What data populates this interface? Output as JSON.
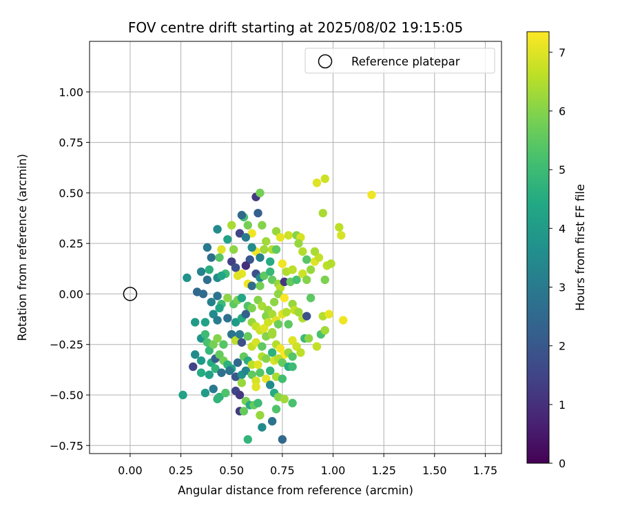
{
  "chart_data": {
    "type": "scatter",
    "title": "FOV centre drift starting at 2025/08/02 19:15:05",
    "xlabel": "Angular distance from reference (arcmin)",
    "ylabel": "Rotation from reference (arcmin)",
    "xlim": [
      -0.2,
      1.83
    ],
    "ylim": [
      -0.79,
      1.25
    ],
    "xticks": [
      0.0,
      0.25,
      0.5,
      0.75,
      1.0,
      1.25,
      1.5,
      1.75
    ],
    "xtick_labels": [
      "0.00",
      "0.25",
      "0.50",
      "0.75",
      "1.00",
      "1.25",
      "1.50",
      "1.75"
    ],
    "yticks": [
      -0.75,
      -0.5,
      -0.25,
      0.0,
      0.25,
      0.5,
      0.75,
      1.0
    ],
    "ytick_labels": [
      "−0.75",
      "−0.50",
      "−0.25",
      "0.00",
      "0.25",
      "0.50",
      "0.75",
      "1.00"
    ],
    "grid": true,
    "legend": {
      "position": "top-right",
      "entries": [
        "Reference platepar"
      ]
    },
    "reference": {
      "x": 0.0,
      "y": 0.0,
      "label": "Reference platepar"
    },
    "colorbar": {
      "label": "Hours from first FF file",
      "colormap": "viridis",
      "range": [
        0,
        7.35
      ],
      "ticks": [
        0,
        1,
        2,
        3,
        4,
        5,
        6,
        7
      ],
      "tick_labels": [
        "0",
        "1",
        "2",
        "3",
        "4",
        "5",
        "6",
        "7"
      ]
    },
    "points": [
      [
        0.62,
        0.48,
        1.2
      ],
      [
        0.64,
        0.5,
        5.8
      ],
      [
        0.92,
        0.55,
        7.0
      ],
      [
        0.96,
        0.57,
        6.8
      ],
      [
        1.19,
        0.49,
        7.2
      ],
      [
        0.95,
        0.4,
        6.4
      ],
      [
        1.03,
        0.33,
        6.6
      ],
      [
        1.04,
        0.29,
        6.9
      ],
      [
        0.56,
        0.38,
        5.2
      ],
      [
        0.58,
        0.34,
        5.8
      ],
      [
        0.63,
        0.4,
        2.2
      ],
      [
        0.55,
        0.39,
        2.5
      ],
      [
        0.65,
        0.34,
        6.0
      ],
      [
        0.67,
        0.26,
        6.3
      ],
      [
        0.7,
        0.22,
        6.5
      ],
      [
        0.72,
        0.31,
        6.2
      ],
      [
        0.74,
        0.28,
        7.1
      ],
      [
        0.78,
        0.29,
        6.8
      ],
      [
        0.82,
        0.29,
        6.0
      ],
      [
        0.84,
        0.28,
        6.9
      ],
      [
        0.85,
        0.21,
        6.5
      ],
      [
        0.83,
        0.25,
        6.2
      ],
      [
        0.5,
        0.34,
        6.4
      ],
      [
        0.54,
        0.3,
        1.5
      ],
      [
        0.51,
        0.22,
        6.1
      ],
      [
        0.45,
        0.22,
        7.0
      ],
      [
        0.43,
        0.32,
        3.5
      ],
      [
        0.48,
        0.27,
        4.2
      ],
      [
        0.6,
        0.3,
        7.2
      ],
      [
        0.62,
        0.21,
        7.2
      ],
      [
        0.6,
        0.23,
        3.5
      ],
      [
        0.57,
        0.28,
        3.0
      ],
      [
        0.59,
        0.17,
        2.0
      ],
      [
        0.64,
        0.18,
        3.2
      ],
      [
        0.66,
        0.22,
        6.3
      ],
      [
        0.69,
        0.16,
        4.5
      ],
      [
        0.72,
        0.22,
        5.5
      ],
      [
        0.75,
        0.15,
        7.2
      ],
      [
        0.77,
        0.11,
        6.5
      ],
      [
        0.8,
        0.12,
        6.6
      ],
      [
        0.85,
        0.1,
        6.8
      ],
      [
        0.87,
        0.17,
        5.4
      ],
      [
        0.89,
        0.12,
        6.2
      ],
      [
        0.91,
        0.16,
        7.0
      ],
      [
        0.93,
        0.18,
        6.7
      ],
      [
        0.97,
        0.14,
        6.6
      ],
      [
        0.99,
        0.15,
        6.5
      ],
      [
        0.96,
        0.07,
        5.9
      ],
      [
        0.91,
        0.21,
        6.4
      ],
      [
        0.87,
        0.07,
        6.0
      ],
      [
        0.38,
        0.23,
        3.0
      ],
      [
        0.4,
        0.18,
        2.7
      ],
      [
        0.39,
        0.12,
        4.6
      ],
      [
        0.35,
        0.11,
        3.3
      ],
      [
        0.38,
        0.07,
        2.7
      ],
      [
        0.43,
        0.08,
        3.5
      ],
      [
        0.44,
        0.18,
        5.4
      ],
      [
        0.47,
        0.1,
        5.0
      ],
      [
        0.45,
        0.09,
        4.3
      ],
      [
        0.5,
        0.16,
        1.4
      ],
      [
        0.52,
        0.13,
        1.8
      ],
      [
        0.55,
        0.1,
        7.1
      ],
      [
        0.57,
        0.14,
        1.0
      ],
      [
        0.53,
        0.09,
        7.0
      ],
      [
        0.58,
        0.05,
        7.2
      ],
      [
        0.62,
        0.1,
        1.8
      ],
      [
        0.6,
        0.04,
        2.6
      ],
      [
        0.64,
        0.08,
        3.4
      ],
      [
        0.64,
        0.04,
        5.8
      ],
      [
        0.66,
        0.09,
        5.5
      ],
      [
        0.69,
        0.11,
        4.9
      ],
      [
        0.7,
        0.07,
        5.6
      ],
      [
        0.73,
        0.05,
        6.2
      ],
      [
        0.74,
        0.03,
        6.6
      ],
      [
        0.76,
        0.06,
        1.2
      ],
      [
        0.79,
        0.06,
        5.6
      ],
      [
        0.82,
        0.07,
        5.2
      ],
      [
        0.73,
        0.0,
        6.1
      ],
      [
        0.76,
        -0.02,
        7.3
      ],
      [
        0.71,
        -0.04,
        6.1
      ],
      [
        0.28,
        0.08,
        3.7
      ],
      [
        0.33,
        0.01,
        2.5
      ],
      [
        0.36,
        0.0,
        2.6
      ],
      [
        0.4,
        -0.04,
        3.2
      ],
      [
        0.43,
        -0.01,
        2.8
      ],
      [
        0.45,
        -0.05,
        5.0
      ],
      [
        0.44,
        -0.07,
        4.3
      ],
      [
        0.48,
        -0.02,
        6.1
      ],
      [
        0.51,
        -0.05,
        5.5
      ],
      [
        0.53,
        -0.03,
        5.8
      ],
      [
        0.55,
        -0.02,
        4.4
      ],
      [
        0.58,
        -0.06,
        5.3
      ],
      [
        0.6,
        -0.07,
        5.9
      ],
      [
        0.63,
        -0.03,
        6.0
      ],
      [
        0.65,
        -0.06,
        6.4
      ],
      [
        0.68,
        -0.08,
        6.2
      ],
      [
        0.67,
        -0.11,
        6.0
      ],
      [
        0.7,
        -0.1,
        6.4
      ],
      [
        0.72,
        -0.13,
        7.0
      ],
      [
        0.75,
        -0.1,
        7.0
      ],
      [
        0.77,
        -0.09,
        6.5
      ],
      [
        0.8,
        -0.05,
        6.2
      ],
      [
        0.81,
        -0.08,
        6.7
      ],
      [
        0.83,
        -0.09,
        6.3
      ],
      [
        0.85,
        -0.12,
        6.5
      ],
      [
        0.87,
        -0.11,
        1.8
      ],
      [
        0.89,
        -0.02,
        5.5
      ],
      [
        0.95,
        -0.11,
        6.5
      ],
      [
        0.98,
        -0.1,
        7.1
      ],
      [
        1.05,
        -0.13,
        7.2
      ],
      [
        0.32,
        -0.14,
        4.0
      ],
      [
        0.37,
        -0.14,
        4.2
      ],
      [
        0.41,
        -0.1,
        3.5
      ],
      [
        0.43,
        -0.13,
        3.1
      ],
      [
        0.48,
        -0.12,
        2.7
      ],
      [
        0.52,
        -0.14,
        4.0
      ],
      [
        0.55,
        -0.12,
        4.5
      ],
      [
        0.57,
        -0.1,
        2.3
      ],
      [
        0.6,
        -0.14,
        6.2
      ],
      [
        0.62,
        -0.16,
        6.7
      ],
      [
        0.64,
        -0.18,
        6.8
      ],
      [
        0.66,
        -0.17,
        7.0
      ],
      [
        0.68,
        -0.14,
        6.8
      ],
      [
        0.7,
        -0.19,
        6.3
      ],
      [
        0.73,
        -0.15,
        5.7
      ],
      [
        0.78,
        -0.15,
        5.5
      ],
      [
        0.8,
        -0.23,
        7.0
      ],
      [
        0.82,
        -0.26,
        6.8
      ],
      [
        0.86,
        -0.22,
        5.0
      ],
      [
        0.88,
        -0.22,
        6.1
      ],
      [
        0.92,
        -0.26,
        6.7
      ],
      [
        0.94,
        -0.2,
        5.2
      ],
      [
        0.96,
        -0.18,
        6.3
      ],
      [
        0.35,
        -0.22,
        3.8
      ],
      [
        0.37,
        -0.2,
        5.0
      ],
      [
        0.38,
        -0.24,
        5.2
      ],
      [
        0.39,
        -0.28,
        4.9
      ],
      [
        0.41,
        -0.25,
        5.8
      ],
      [
        0.43,
        -0.22,
        6.0
      ],
      [
        0.46,
        -0.25,
        5.4
      ],
      [
        0.5,
        -0.2,
        2.8
      ],
      [
        0.52,
        -0.23,
        6.6
      ],
      [
        0.54,
        -0.2,
        3.1
      ],
      [
        0.55,
        -0.24,
        1.8
      ],
      [
        0.58,
        -0.21,
        5.6
      ],
      [
        0.6,
        -0.26,
        6.7
      ],
      [
        0.62,
        -0.24,
        6.9
      ],
      [
        0.65,
        -0.26,
        5.5
      ],
      [
        0.67,
        -0.21,
        6.0
      ],
      [
        0.7,
        -0.2,
        6.3
      ],
      [
        0.72,
        -0.25,
        6.5
      ],
      [
        0.74,
        -0.27,
        7.2
      ],
      [
        0.76,
        -0.3,
        7.3
      ],
      [
        0.78,
        -0.29,
        6.2
      ],
      [
        0.8,
        -0.31,
        5.4
      ],
      [
        0.84,
        -0.29,
        6.6
      ],
      [
        0.32,
        -0.3,
        3.5
      ],
      [
        0.35,
        -0.33,
        4.0
      ],
      [
        0.4,
        -0.34,
        4.5
      ],
      [
        0.42,
        -0.32,
        2.2
      ],
      [
        0.44,
        -0.3,
        5.6
      ],
      [
        0.46,
        -0.33,
        5.8
      ],
      [
        0.48,
        -0.35,
        4.7
      ],
      [
        0.5,
        -0.37,
        4.2
      ],
      [
        0.53,
        -0.34,
        2.5
      ],
      [
        0.56,
        -0.31,
        5.6
      ],
      [
        0.58,
        -0.33,
        4.6
      ],
      [
        0.6,
        -0.35,
        6.6
      ],
      [
        0.63,
        -0.35,
        7.0
      ],
      [
        0.65,
        -0.31,
        6.5
      ],
      [
        0.67,
        -0.32,
        6.0
      ],
      [
        0.7,
        -0.29,
        4.7
      ],
      [
        0.71,
        -0.33,
        6.9
      ],
      [
        0.73,
        -0.32,
        6.5
      ],
      [
        0.75,
        -0.34,
        5.6
      ],
      [
        0.78,
        -0.36,
        4.5
      ],
      [
        0.8,
        -0.36,
        5.0
      ],
      [
        0.31,
        -0.36,
        1.5
      ],
      [
        0.35,
        -0.39,
        4.5
      ],
      [
        0.39,
        -0.4,
        4.2
      ],
      [
        0.42,
        -0.37,
        4.8
      ],
      [
        0.45,
        -0.39,
        2.7
      ],
      [
        0.49,
        -0.38,
        2.9
      ],
      [
        0.52,
        -0.41,
        2.0
      ],
      [
        0.55,
        -0.4,
        3.7
      ],
      [
        0.57,
        -0.38,
        3.3
      ],
      [
        0.6,
        -0.4,
        5.5
      ],
      [
        0.62,
        -0.43,
        6.9
      ],
      [
        0.64,
        -0.39,
        5.4
      ],
      [
        0.67,
        -0.42,
        7.1
      ],
      [
        0.69,
        -0.38,
        4.7
      ],
      [
        0.72,
        -0.41,
        6.4
      ],
      [
        0.75,
        -0.42,
        5.1
      ],
      [
        0.37,
        -0.49,
        4.0
      ],
      [
        0.41,
        -0.47,
        3.0
      ],
      [
        0.44,
        -0.51,
        4.7
      ],
      [
        0.43,
        -0.52,
        4.8
      ],
      [
        0.47,
        -0.49,
        5.3
      ],
      [
        0.52,
        -0.48,
        1.5
      ],
      [
        0.54,
        -0.5,
        1.2
      ],
      [
        0.57,
        -0.53,
        5.8
      ],
      [
        0.59,
        -0.55,
        4.5
      ],
      [
        0.61,
        -0.55,
        5.6
      ],
      [
        0.63,
        -0.54,
        5.0
      ],
      [
        0.69,
        -0.45,
        3.5
      ],
      [
        0.71,
        -0.49,
        4.5
      ],
      [
        0.73,
        -0.51,
        6.0
      ],
      [
        0.76,
        -0.52,
        6.3
      ],
      [
        0.8,
        -0.54,
        5.2
      ],
      [
        0.26,
        -0.5,
        4.2
      ],
      [
        0.54,
        -0.58,
        1.2
      ],
      [
        0.56,
        -0.58,
        5.6
      ],
      [
        0.64,
        -0.6,
        6.2
      ],
      [
        0.72,
        -0.57,
        5.3
      ],
      [
        0.65,
        -0.66,
        3.5
      ],
      [
        0.7,
        -0.63,
        2.8
      ],
      [
        0.58,
        -0.72,
        4.8
      ],
      [
        0.75,
        -0.72,
        2.5
      ],
      [
        0.55,
        -0.44,
        6.2
      ],
      [
        0.62,
        -0.46,
        7.0
      ]
    ]
  }
}
